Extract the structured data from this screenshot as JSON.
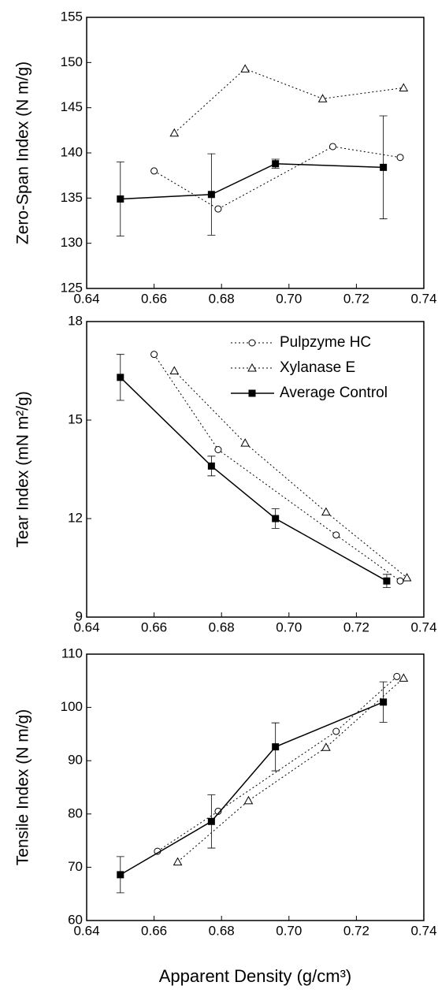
{
  "chart_data": [
    {
      "type": "line",
      "ylabel": "Zero-Span Index (N  m/g)",
      "xlim": [
        0.64,
        0.74
      ],
      "xticks": [
        0.64,
        0.66,
        0.68,
        {
          "value": 0.7,
          "label": "0.70"
        },
        0.72,
        0.74
      ],
      "ylim": [
        125,
        155
      ],
      "yticks": [
        125,
        130,
        135,
        140,
        145,
        150,
        155
      ],
      "series": [
        {
          "marker": "circle",
          "dash": true,
          "color": "#000000",
          "x": [
            0.66,
            0.679,
            0.713,
            0.733
          ],
          "values": [
            138.0,
            133.8,
            140.7,
            139.5
          ]
        },
        {
          "marker": "triangle",
          "dash": true,
          "color": "#000000",
          "x": [
            0.666,
            0.687,
            0.71,
            0.734
          ],
          "values": [
            142.2,
            149.3,
            146.0,
            147.2
          ]
        },
        {
          "marker": "square",
          "dash": false,
          "color": "#000000",
          "x": [
            0.65,
            0.677,
            0.696,
            0.728
          ],
          "values": [
            134.9,
            135.4,
            138.8,
            138.4
          ],
          "errors": [
            4.1,
            4.5,
            0.5,
            5.7
          ]
        }
      ]
    },
    {
      "type": "line",
      "ylabel": "Tear Index (mN  m²/g)",
      "legend": "upper right",
      "xlim": [
        0.64,
        0.74
      ],
      "xticks": [
        0.64,
        0.66,
        0.68,
        {
          "value": 0.7,
          "label": "0.70"
        },
        0.72,
        0.74
      ],
      "ylim": [
        9,
        18
      ],
      "yticks": [
        9,
        12,
        15,
        18
      ],
      "series": [
        {
          "name": "Pulpzyme HC",
          "marker": "circle",
          "dash": true,
          "color": "#000000",
          "x": [
            0.66,
            0.679,
            0.714,
            0.733
          ],
          "values": [
            17.0,
            14.1,
            11.5,
            10.1
          ]
        },
        {
          "name": "Xylanase E",
          "marker": "triangle",
          "dash": true,
          "color": "#000000",
          "x": [
            0.666,
            0.687,
            0.711,
            0.735
          ],
          "values": [
            16.5,
            14.3,
            12.2,
            10.2
          ]
        },
        {
          "name": "Average Control",
          "marker": "square",
          "dash": false,
          "color": "#000000",
          "x": [
            0.65,
            0.677,
            0.696,
            0.729
          ],
          "values": [
            16.3,
            13.6,
            12.0,
            10.1
          ],
          "errors": [
            0.7,
            0.3,
            0.3,
            0.2
          ]
        }
      ]
    },
    {
      "type": "line",
      "ylabel": "Tensile Index (N  m/g)",
      "xlabel": "Apparent Density (g/cm³)",
      "xlim": [
        0.64,
        0.74
      ],
      "xticks": [
        0.64,
        0.66,
        0.68,
        {
          "value": 0.7,
          "label": "0.70"
        },
        0.72,
        0.74
      ],
      "ylim": [
        60,
        110
      ],
      "yticks": [
        60,
        70,
        80,
        90,
        100,
        110
      ],
      "series": [
        {
          "marker": "circle",
          "dash": true,
          "color": "#000000",
          "x": [
            0.661,
            0.679,
            0.714,
            0.732
          ],
          "values": [
            73.0,
            80.5,
            95.5,
            105.8
          ]
        },
        {
          "marker": "triangle",
          "dash": true,
          "color": "#000000",
          "x": [
            0.667,
            0.688,
            0.711,
            0.734
          ],
          "values": [
            71.0,
            82.5,
            92.5,
            105.5
          ]
        },
        {
          "marker": "square",
          "dash": false,
          "color": "#000000",
          "x": [
            0.65,
            0.677,
            0.696,
            0.728
          ],
          "values": [
            68.6,
            78.6,
            92.6,
            101.0
          ],
          "errors": [
            3.4,
            5.0,
            4.5,
            3.8
          ]
        }
      ]
    }
  ]
}
